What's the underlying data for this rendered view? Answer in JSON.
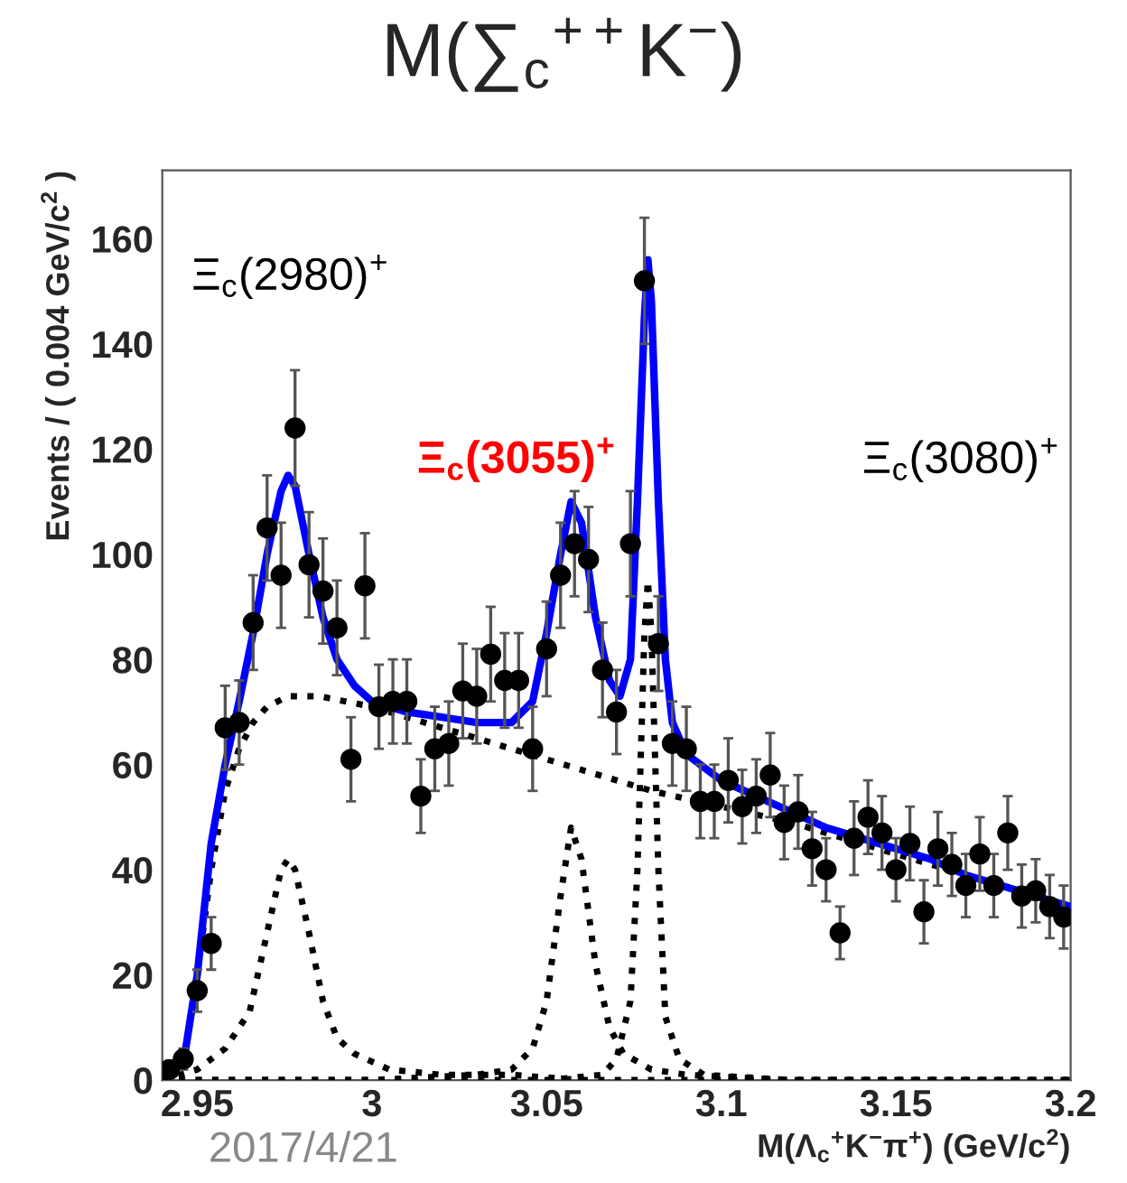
{
  "chart_data": {
    "type": "scatter",
    "title": "M(∑$_{c}$$^{++}$K$^{−}$)",
    "xlabel": "M(Λ$_{c}$$^{+}$K$^{−}$π$^{+}$) (GeV/c$^{2}$)",
    "ylabel": "Events / ( 0.004 GeV/c$^{2}$ )",
    "xlim": [
      2.94,
      3.2
    ],
    "ylim": [
      0,
      173
    ],
    "xticks": [
      2.95,
      3,
      3.05,
      3.1,
      3.15,
      3.2
    ],
    "yticks": [
      0,
      20,
      40,
      60,
      80,
      100,
      120,
      140,
      160
    ],
    "grid": false,
    "annotations": [
      "Ξ$_{c}$(2980)$^{+}$",
      "Ξ$_{c}$(3055)$^{+}$",
      "Ξ$_{c}$(3080)$^{+}$",
      "2017/4/21"
    ],
    "series": [
      {
        "color": "#000000",
        "marker": "circle",
        "x": [
          2.942,
          2.946,
          2.95,
          2.954,
          2.958,
          2.962,
          2.966,
          2.97,
          2.974,
          2.978,
          2.982,
          2.986,
          2.99,
          2.994,
          2.998,
          3.002,
          3.006,
          3.01,
          3.014,
          3.018,
          3.022,
          3.026,
          3.03,
          3.034,
          3.038,
          3.042,
          3.046,
          3.05,
          3.054,
          3.058,
          3.062,
          3.066,
          3.07,
          3.074,
          3.078,
          3.082,
          3.086,
          3.09,
          3.094,
          3.098,
          3.102,
          3.106,
          3.11,
          3.114,
          3.118,
          3.122,
          3.126,
          3.13,
          3.134,
          3.138,
          3.142,
          3.146,
          3.15,
          3.154,
          3.158,
          3.162,
          3.166,
          3.17,
          3.174,
          3.178,
          3.182,
          3.186,
          3.19,
          3.194,
          3.198
        ],
        "values": [
          2,
          4,
          17,
          26,
          67,
          68,
          87,
          105,
          96,
          124,
          98,
          93,
          86,
          61,
          94,
          71,
          72,
          72,
          54,
          63,
          64,
          74,
          73,
          81,
          76,
          76,
          63,
          82,
          96,
          102,
          99,
          78,
          70,
          102,
          152,
          83,
          64,
          63,
          53,
          53,
          57,
          52,
          54,
          58,
          49,
          51,
          44,
          40,
          28,
          46,
          50,
          47,
          40,
          45,
          32,
          44,
          41,
          37,
          43,
          37,
          47,
          35,
          36,
          33,
          31
        ],
        "errors": [
          1,
          2,
          4,
          5,
          8,
          8,
          9,
          10,
          10,
          11,
          10,
          10,
          9,
          8,
          10,
          8,
          8,
          8,
          7,
          8,
          8,
          9,
          9,
          9,
          9,
          9,
          8,
          9,
          10,
          10,
          10,
          9,
          8,
          10,
          12,
          9,
          8,
          8,
          7,
          7,
          8,
          7,
          7,
          8,
          7,
          7,
          7,
          6,
          5,
          7,
          7,
          7,
          6,
          7,
          6,
          7,
          6,
          6,
          7,
          6,
          7,
          6,
          6,
          6,
          6
        ]
      },
      {
        "type": "line",
        "color": "#0000ff",
        "line_style": "solid",
        "x": [
          2.942,
          2.946,
          2.95,
          2.954,
          2.958,
          2.962,
          2.966,
          2.97,
          2.974,
          2.976,
          2.978,
          2.982,
          2.986,
          2.99,
          2.995,
          3.0,
          3.01,
          3.02,
          3.03,
          3.04,
          3.046,
          3.05,
          3.054,
          3.057,
          3.06,
          3.064,
          3.068,
          3.071,
          3.074,
          3.076,
          3.078,
          3.079,
          3.08,
          3.082,
          3.084,
          3.086,
          3.09,
          3.1,
          3.11,
          3.12,
          3.13,
          3.14,
          3.15,
          3.16,
          3.17,
          3.18,
          3.19,
          3.2
        ],
        "values": [
          1,
          3,
          20,
          45,
          60,
          72,
          85,
          100,
          112,
          115,
          113,
          100,
          88,
          80,
          75,
          72,
          70,
          69,
          68,
          68,
          72,
          85,
          100,
          110,
          106,
          88,
          76,
          73,
          80,
          110,
          145,
          156,
          148,
          110,
          80,
          68,
          62,
          57,
          54,
          51,
          48,
          46,
          44,
          42,
          39,
          37,
          35,
          33
        ]
      },
      {
        "type": "line",
        "color": "#000000",
        "line_style": "dotted",
        "x": [
          2.942,
          2.946,
          2.95,
          2.954,
          2.958,
          2.962,
          2.966,
          2.97,
          2.976,
          2.985,
          3.0,
          3.02,
          3.04,
          3.06,
          3.08,
          3.1,
          3.12,
          3.14,
          3.16,
          3.18,
          3.2
        ],
        "values": [
          1,
          3,
          20,
          40,
          55,
          63,
          68,
          71,
          73,
          73,
          71,
          67,
          63,
          59,
          55,
          52,
          49,
          45,
          41,
          37,
          33
        ]
      },
      {
        "type": "line",
        "color": "#000000",
        "line_style": "dotted",
        "x": [
          2.94,
          2.95,
          2.958,
          2.965,
          2.97,
          2.974,
          2.976,
          2.978,
          2.982,
          2.986,
          2.99,
          2.995,
          3.005,
          3.02,
          3.04,
          3.06,
          3.1,
          3.2
        ],
        "values": [
          0,
          2,
          6,
          13,
          28,
          40,
          42,
          40,
          28,
          15,
          8,
          5,
          2,
          1,
          1,
          0,
          0,
          0
        ]
      },
      {
        "type": "line",
        "color": "#000000",
        "line_style": "dotted",
        "x": [
          2.94,
          3.0,
          3.03,
          3.04,
          3.046,
          3.05,
          3.054,
          3.057,
          3.06,
          3.064,
          3.068,
          3.072,
          3.08,
          3.09,
          3.12,
          3.2
        ],
        "values": [
          0,
          0,
          1,
          2,
          6,
          15,
          35,
          48,
          42,
          22,
          10,
          5,
          2,
          1,
          0,
          0
        ]
      },
      {
        "type": "line",
        "color": "#000000",
        "line_style": "dotted",
        "x": [
          2.94,
          3.05,
          3.066,
          3.07,
          3.074,
          3.076,
          3.078,
          3.079,
          3.08,
          3.082,
          3.084,
          3.088,
          3.095,
          3.12,
          3.2
        ],
        "values": [
          0,
          0,
          1,
          4,
          15,
          40,
          85,
          95,
          85,
          40,
          12,
          4,
          1,
          0,
          0
        ]
      }
    ]
  }
}
